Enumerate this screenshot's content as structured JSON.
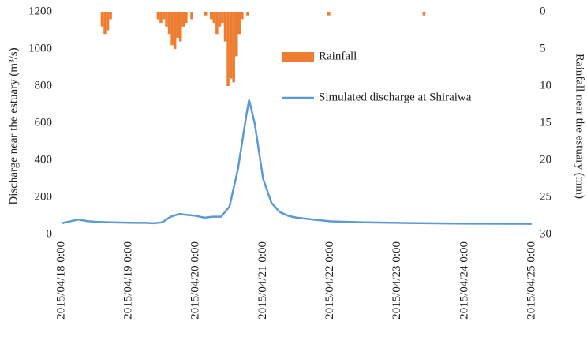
{
  "chart_data": {
    "type": "line",
    "y_label": "Discharge near the estuary  (m³/s)",
    "y2_label": "Rainfall near the estuary (mm)",
    "xlim": [
      "2015/04/18 0:00",
      "2015/04/25 0:00"
    ],
    "xticks": [
      "2015/04/18 0:00",
      "2015/04/19 0:00",
      "2015/04/20 0:00",
      "2015/04/21 0:00",
      "2015/04/22 0:00",
      "2015/04/23 0:00",
      "2015/04/24 0:00",
      "2015/04/25 0:00"
    ],
    "ylim": [
      0,
      1200
    ],
    "yticks": [
      0,
      200,
      400,
      600,
      800,
      1000,
      1200
    ],
    "y2lim": [
      0,
      30
    ],
    "y2ticks": [
      0,
      5,
      10,
      15,
      20,
      25,
      30
    ],
    "y2_inverted": true,
    "grid": false,
    "series": [
      {
        "name": "Rainfall",
        "color": "#ed7d31",
        "type": "bar",
        "axis": "y2",
        "x": [
          "2015/04/18 14:00",
          "2015/04/18 15:00",
          "2015/04/18 16:00",
          "2015/04/18 17:00",
          "2015/04/19 10:00",
          "2015/04/19 11:00",
          "2015/04/19 12:00",
          "2015/04/19 13:00",
          "2015/04/19 14:00",
          "2015/04/19 15:00",
          "2015/04/19 16:00",
          "2015/04/19 17:00",
          "2015/04/19 18:00",
          "2015/04/19 19:00",
          "2015/04/19 20:00",
          "2015/04/19 22:00",
          "2015/04/20 3:00",
          "2015/04/20 5:00",
          "2015/04/20 6:00",
          "2015/04/20 7:00",
          "2015/04/20 8:00",
          "2015/04/20 9:00",
          "2015/04/20 10:00",
          "2015/04/20 11:00",
          "2015/04/20 12:00",
          "2015/04/20 13:00",
          "2015/04/20 14:00",
          "2015/04/20 15:00",
          "2015/04/20 16:00",
          "2015/04/20 18:00",
          "2015/04/21 23:00",
          "2015/04/23 9:00"
        ],
        "values": [
          2,
          3,
          2.5,
          1,
          1,
          1.5,
          1,
          2,
          3,
          4.5,
          5,
          3.5,
          4,
          2,
          1.5,
          1,
          0.5,
          1,
          1.5,
          3,
          2,
          1.5,
          4,
          10,
          9,
          9.5,
          6,
          3,
          1,
          0.5,
          0.5,
          0.5
        ]
      },
      {
        "name": "Simulated discharge at Shiraiwa",
        "color": "#5b9bd5",
        "type": "line",
        "x": [
          "2015/04/18 0:00",
          "2015/04/18 3:00",
          "2015/04/18 6:00",
          "2015/04/18 9:00",
          "2015/04/18 12:00",
          "2015/04/18 15:00",
          "2015/04/18 18:00",
          "2015/04/18 21:00",
          "2015/04/19 0:00",
          "2015/04/19 3:00",
          "2015/04/19 6:00",
          "2015/04/19 9:00",
          "2015/04/19 12:00",
          "2015/04/19 15:00",
          "2015/04/19 18:00",
          "2015/04/19 21:00",
          "2015/04/20 0:00",
          "2015/04/20 3:00",
          "2015/04/20 6:00",
          "2015/04/20 9:00",
          "2015/04/20 12:00",
          "2015/04/20 15:00",
          "2015/04/20 18:00",
          "2015/04/20 19:00",
          "2015/04/20 21:00",
          "2015/04/21 0:00",
          "2015/04/21 3:00",
          "2015/04/21 6:00",
          "2015/04/21 9:00",
          "2015/04/21 12:00",
          "2015/04/21 18:00",
          "2015/04/22 0:00",
          "2015/04/22 12:00",
          "2015/04/23 0:00",
          "2015/04/24 0:00",
          "2015/04/25 0:00"
        ],
        "values": [
          60,
          70,
          80,
          72,
          68,
          66,
          65,
          64,
          63,
          62,
          62,
          60,
          65,
          95,
          110,
          105,
          100,
          90,
          95,
          95,
          150,
          350,
          640,
          725,
          600,
          300,
          170,
          120,
          100,
          90,
          80,
          70,
          65,
          62,
          58,
          57
        ]
      }
    ]
  }
}
